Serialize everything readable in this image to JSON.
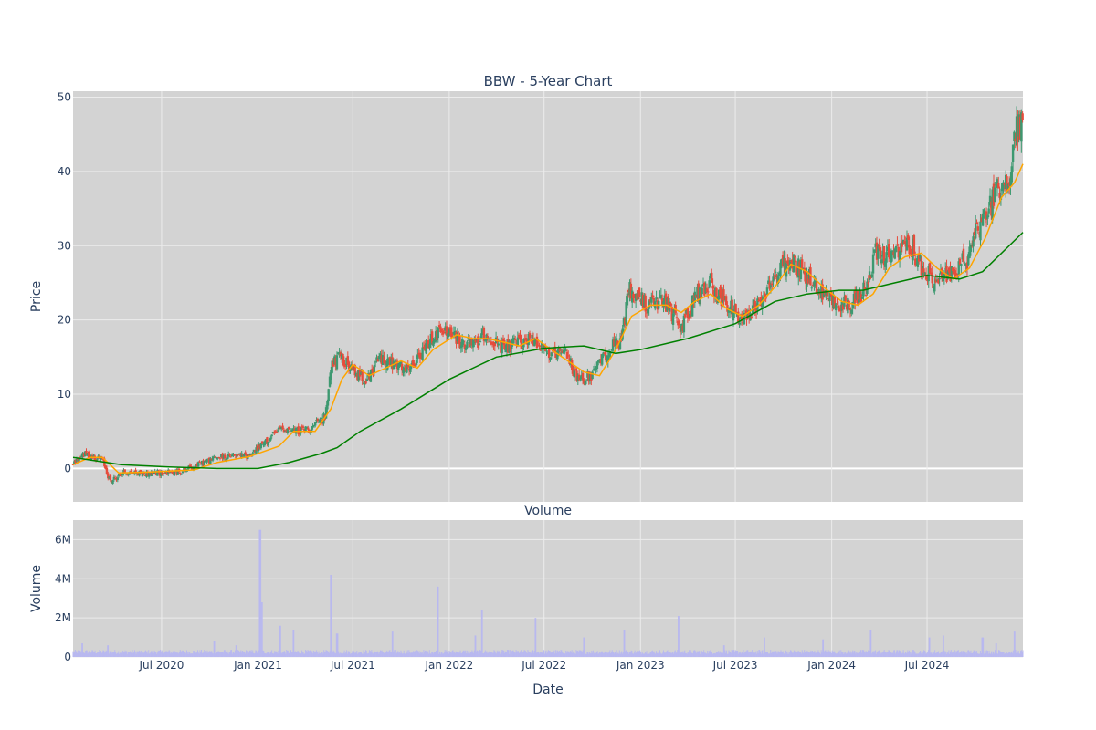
{
  "chart_data": [
    {
      "type": "line",
      "title": "BBW - 5-Year Chart",
      "xlabel": "",
      "ylabel": "Price",
      "ylim": [
        -4.5,
        50.8
      ],
      "xlim": [
        "2020-01-14",
        "2024-12-31"
      ],
      "y_ticks": [
        0,
        10,
        20,
        30,
        40,
        50
      ],
      "grid": true,
      "background": "#d3d3d3",
      "series": [
        {
          "kind": "candlestick",
          "increasing_color": "#3d9970",
          "decreasing_color": "#e74c3c",
          "anchors": [
            [
              "2020-01-14",
              0.5
            ],
            [
              "2020-02-01",
              2.0
            ],
            [
              "2020-03-10",
              1.2
            ],
            [
              "2020-03-25",
              -1.8
            ],
            [
              "2020-04-20",
              -0.5
            ],
            [
              "2020-06-01",
              -0.7
            ],
            [
              "2020-08-01",
              -0.5
            ],
            [
              "2020-09-01",
              0.3
            ],
            [
              "2020-10-15",
              1.5
            ],
            [
              "2020-12-15",
              1.8
            ],
            [
              "2021-01-15",
              3.5
            ],
            [
              "2021-02-15",
              5.5
            ],
            [
              "2021-03-15",
              5.0
            ],
            [
              "2021-04-15",
              5.5
            ],
            [
              "2021-05-10",
              7.0
            ],
            [
              "2021-05-20",
              14.0
            ],
            [
              "2021-06-10",
              15.0
            ],
            [
              "2021-07-01",
              13.0
            ],
            [
              "2021-08-01",
              12.0
            ],
            [
              "2021-08-20",
              15.0
            ],
            [
              "2021-09-15",
              14.0
            ],
            [
              "2021-10-15",
              13.0
            ],
            [
              "2021-11-15",
              16.0
            ],
            [
              "2021-12-01",
              18.0
            ],
            [
              "2022-01-01",
              18.5
            ],
            [
              "2022-01-20",
              17.0
            ],
            [
              "2022-02-15",
              16.5
            ],
            [
              "2022-03-10",
              18.0
            ],
            [
              "2022-04-15",
              16.0
            ],
            [
              "2022-05-15",
              17.0
            ],
            [
              "2022-06-15",
              17.5
            ],
            [
              "2022-07-15",
              15.0
            ],
            [
              "2022-08-15",
              15.5
            ],
            [
              "2022-09-01",
              12.0
            ],
            [
              "2022-10-01",
              12.5
            ],
            [
              "2022-11-01",
              16.0
            ],
            [
              "2022-11-25",
              17.0
            ],
            [
              "2022-12-10",
              24.0
            ],
            [
              "2023-01-15",
              22.0
            ],
            [
              "2023-02-15",
              22.5
            ],
            [
              "2023-03-20",
              19.0
            ],
            [
              "2023-04-15",
              23.0
            ],
            [
              "2023-05-15",
              25.0
            ],
            [
              "2023-06-15",
              22.0
            ],
            [
              "2023-07-10",
              20.0
            ],
            [
              "2023-08-15",
              22.5
            ],
            [
              "2023-09-15",
              26.0
            ],
            [
              "2023-10-15",
              28.0
            ],
            [
              "2023-11-15",
              26.0
            ],
            [
              "2023-12-15",
              23.5
            ],
            [
              "2024-01-20",
              22.0
            ],
            [
              "2024-02-20",
              23.0
            ],
            [
              "2024-03-10",
              24.5
            ],
            [
              "2024-03-25",
              29.5
            ],
            [
              "2024-04-15",
              28.5
            ],
            [
              "2024-05-15",
              29.5
            ],
            [
              "2024-06-01",
              30.0
            ],
            [
              "2024-06-20",
              27.0
            ],
            [
              "2024-07-15",
              25.0
            ],
            [
              "2024-08-15",
              26.5
            ],
            [
              "2024-09-15",
              28.0
            ],
            [
              "2024-10-01",
              32.5
            ],
            [
              "2024-10-20",
              34.0
            ],
            [
              "2024-11-15",
              38.0
            ],
            [
              "2024-12-05",
              38.5
            ],
            [
              "2024-12-15",
              45.0
            ],
            [
              "2024-12-31",
              46.5
            ]
          ]
        },
        {
          "name": "",
          "kind": "moving-average-short",
          "color": "#ffa500",
          "points": [
            [
              "2020-01-14",
              0.5
            ],
            [
              "2020-02-15",
              1.5
            ],
            [
              "2020-03-10",
              1.5
            ],
            [
              "2020-04-10",
              -0.6
            ],
            [
              "2020-06-01",
              -0.5
            ],
            [
              "2020-09-01",
              -0.2
            ],
            [
              "2020-10-15",
              0.8
            ],
            [
              "2020-12-15",
              1.6
            ],
            [
              "2021-02-10",
              3.0
            ],
            [
              "2021-03-10",
              5.0
            ],
            [
              "2021-04-20",
              5.0
            ],
            [
              "2021-05-20",
              8.0
            ],
            [
              "2021-06-10",
              12.0
            ],
            [
              "2021-07-01",
              14.0
            ],
            [
              "2021-08-01",
              12.5
            ],
            [
              "2021-09-01",
              13.5
            ],
            [
              "2021-10-01",
              14.5
            ],
            [
              "2021-11-01",
              13.5
            ],
            [
              "2021-12-01",
              16.0
            ],
            [
              "2022-01-15",
              18.0
            ],
            [
              "2022-02-15",
              17.5
            ],
            [
              "2022-03-15",
              17.5
            ],
            [
              "2022-04-15",
              17.0
            ],
            [
              "2022-05-15",
              16.5
            ],
            [
              "2022-06-15",
              17.5
            ],
            [
              "2022-07-15",
              16.0
            ],
            [
              "2022-08-15",
              14.5
            ],
            [
              "2022-09-15",
              13.0
            ],
            [
              "2022-10-15",
              12.5
            ],
            [
              "2022-11-15",
              16.0
            ],
            [
              "2022-12-15",
              20.5
            ],
            [
              "2023-01-20",
              22.0
            ],
            [
              "2023-02-20",
              22.0
            ],
            [
              "2023-03-20",
              21.0
            ],
            [
              "2023-04-15",
              22.5
            ],
            [
              "2023-05-15",
              23.5
            ],
            [
              "2023-06-15",
              21.5
            ],
            [
              "2023-07-15",
              20.5
            ],
            [
              "2023-08-15",
              22.0
            ],
            [
              "2023-09-15",
              24.5
            ],
            [
              "2023-10-15",
              27.5
            ],
            [
              "2023-11-15",
              26.5
            ],
            [
              "2023-12-15",
              24.5
            ],
            [
              "2024-01-20",
              22.5
            ],
            [
              "2024-02-20",
              22.0
            ],
            [
              "2024-03-20",
              23.5
            ],
            [
              "2024-04-20",
              27.0
            ],
            [
              "2024-05-20",
              28.5
            ],
            [
              "2024-06-20",
              29.0
            ],
            [
              "2024-07-20",
              27.0
            ],
            [
              "2024-08-20",
              25.5
            ],
            [
              "2024-09-20",
              27.0
            ],
            [
              "2024-10-20",
              31.0
            ],
            [
              "2024-11-20",
              36.5
            ],
            [
              "2024-12-15",
              38.5
            ],
            [
              "2024-12-31",
              41.0
            ]
          ]
        },
        {
          "name": "",
          "kind": "moving-average-long",
          "color": "#008000",
          "points": [
            [
              "2020-01-14",
              1.5
            ],
            [
              "2020-04-15",
              0.5
            ],
            [
              "2020-07-15",
              0.2
            ],
            [
              "2020-10-15",
              0.0
            ],
            [
              "2021-01-01",
              0.0
            ],
            [
              "2021-03-01",
              0.8
            ],
            [
              "2021-05-01",
              2.0
            ],
            [
              "2021-06-01",
              2.8
            ],
            [
              "2021-07-15",
              5.0
            ],
            [
              "2021-10-01",
              8.0
            ],
            [
              "2022-01-01",
              12.0
            ],
            [
              "2022-04-01",
              15.0
            ],
            [
              "2022-07-01",
              16.2
            ],
            [
              "2022-09-15",
              16.5
            ],
            [
              "2022-11-15",
              15.5
            ],
            [
              "2023-01-01",
              16.0
            ],
            [
              "2023-04-01",
              17.5
            ],
            [
              "2023-07-01",
              19.5
            ],
            [
              "2023-09-15",
              22.5
            ],
            [
              "2023-11-15",
              23.5
            ],
            [
              "2024-01-15",
              24.0
            ],
            [
              "2024-03-01",
              24.0
            ],
            [
              "2024-05-01",
              25.0
            ],
            [
              "2024-07-01",
              26.0
            ],
            [
              "2024-09-01",
              25.5
            ],
            [
              "2024-10-15",
              26.5
            ],
            [
              "2024-12-31",
              31.8
            ]
          ]
        }
      ]
    },
    {
      "type": "bar",
      "title": "Volume",
      "xlabel": "Date",
      "ylabel": "Volume",
      "ylim": [
        0,
        7000000
      ],
      "y_ticks": [
        0,
        2000000,
        4000000,
        6000000
      ],
      "y_tick_labels": [
        "0",
        "2M",
        "4M",
        "6M"
      ],
      "x_ticks": [
        "2020-07-01",
        "2021-01-01",
        "2021-07-01",
        "2022-01-01",
        "2022-07-01",
        "2023-01-01",
        "2023-07-01",
        "2024-01-01",
        "2024-07-01"
      ],
      "x_tick_labels": [
        "Jul 2020",
        "Jan 2021",
        "Jul 2021",
        "Jan 2022",
        "Jul 2022",
        "Jan 2023",
        "Jul 2023",
        "Jan 2024",
        "Jul 2024"
      ],
      "grid": true,
      "background": "#d3d3d3",
      "bar_color": "#b8b8f0",
      "baseline": 250000,
      "spikes": [
        [
          "2020-02-01",
          700000
        ],
        [
          "2020-03-20",
          600000
        ],
        [
          "2020-10-10",
          800000
        ],
        [
          "2020-11-20",
          600000
        ],
        [
          "2021-01-05",
          6500000
        ],
        [
          "2021-01-08",
          2800000
        ],
        [
          "2021-02-12",
          1600000
        ],
        [
          "2021-03-10",
          1400000
        ],
        [
          "2021-05-20",
          4200000
        ],
        [
          "2021-06-01",
          1200000
        ],
        [
          "2021-09-15",
          1300000
        ],
        [
          "2021-12-10",
          3600000
        ],
        [
          "2022-02-20",
          1100000
        ],
        [
          "2022-03-05",
          2400000
        ],
        [
          "2022-06-15",
          2000000
        ],
        [
          "2022-09-15",
          1000000
        ],
        [
          "2022-12-01",
          1400000
        ],
        [
          "2023-03-15",
          2100000
        ],
        [
          "2023-06-10",
          600000
        ],
        [
          "2023-08-25",
          1000000
        ],
        [
          "2023-12-15",
          900000
        ],
        [
          "2024-03-15",
          1400000
        ],
        [
          "2024-07-05",
          1000000
        ],
        [
          "2024-08-01",
          1100000
        ],
        [
          "2024-10-15",
          1000000
        ],
        [
          "2024-11-10",
          700000
        ],
        [
          "2024-12-15",
          1300000
        ]
      ]
    }
  ]
}
